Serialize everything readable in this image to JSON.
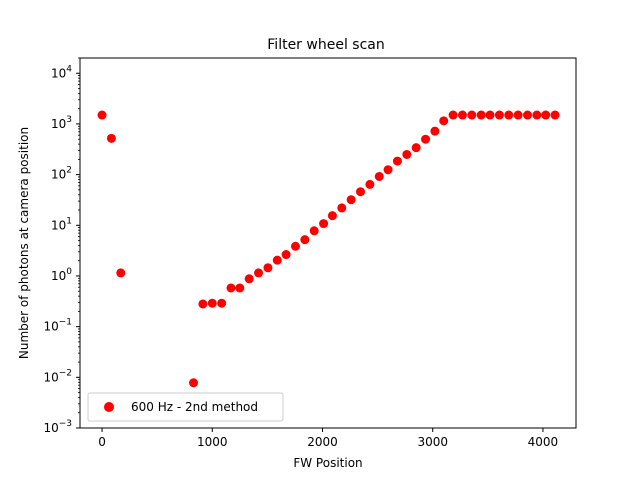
{
  "chart_data": {
    "type": "scatter",
    "title": "Filter wheel scan",
    "xlabel": "FW Position",
    "ylabel": "Number of photons at camera position",
    "xlim": [
      -200,
      4300
    ],
    "ylim": [
      0.001,
      20000
    ],
    "yscale": "log",
    "grid": false,
    "legend_position": "lower-left",
    "x_ticks": [
      {
        "value": 0,
        "label": "0"
      },
      {
        "value": 1000,
        "label": "1000"
      },
      {
        "value": 2000,
        "label": "2000"
      },
      {
        "value": 3000,
        "label": "3000"
      },
      {
        "value": 4000,
        "label": "4000"
      }
    ],
    "y_ticks": [
      {
        "value": 0.001,
        "base": "10",
        "exp": "−3"
      },
      {
        "value": 0.01,
        "base": "10",
        "exp": "−2"
      },
      {
        "value": 0.1,
        "base": "10",
        "exp": "−1"
      },
      {
        "value": 1,
        "base": "10",
        "exp": "0"
      },
      {
        "value": 10,
        "base": "10",
        "exp": "1"
      },
      {
        "value": 100,
        "base": "10",
        "exp": "2"
      },
      {
        "value": 1000,
        "base": "10",
        "exp": "3"
      },
      {
        "value": 10000,
        "base": "10",
        "exp": "4"
      }
    ],
    "series": [
      {
        "name": "600 Hz - 2nd method",
        "color": "#ff0000",
        "marker": "circle",
        "x": [
          0,
          85,
          170,
          830,
          915,
          1000,
          1085,
          1170,
          1250,
          1335,
          1420,
          1505,
          1590,
          1670,
          1755,
          1840,
          1925,
          2010,
          2090,
          2175,
          2260,
          2345,
          2430,
          2515,
          2595,
          2680,
          2765,
          2850,
          2935,
          3020,
          3100,
          3185,
          3270,
          3355,
          3440,
          3520,
          3605,
          3690,
          3775,
          3860,
          3945,
          4025,
          4110
        ],
        "y": [
          1500,
          520,
          1.15,
          0.0078,
          0.28,
          0.29,
          0.29,
          0.58,
          0.58,
          0.88,
          1.15,
          1.45,
          2.05,
          2.65,
          3.85,
          5.2,
          7.8,
          10.8,
          15.5,
          22,
          32,
          46,
          64,
          92,
          125,
          185,
          250,
          340,
          500,
          720,
          1150,
          1500,
          1500,
          1500,
          1500,
          1500,
          1500,
          1500,
          1500,
          1500,
          1500,
          1500,
          1500
        ]
      }
    ]
  }
}
